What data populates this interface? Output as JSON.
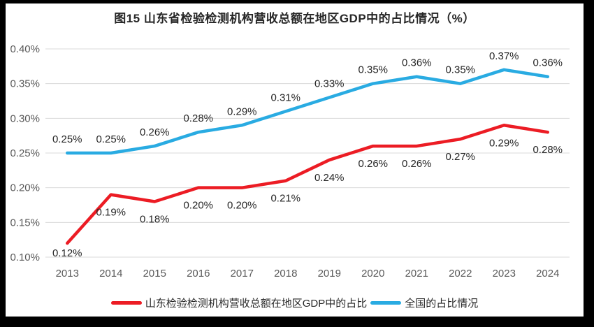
{
  "page": {
    "frame_color": "#000000",
    "canvas_color": "#ffffff"
  },
  "chart_data": {
    "type": "line",
    "title": "图15  山东省检验检测机构营收总额在地区GDP中的占比情况（%）",
    "categories": [
      "2013",
      "2014",
      "2015",
      "2016",
      "2017",
      "2018",
      "2019",
      "2020",
      "2021",
      "2022",
      "2023",
      "2024"
    ],
    "y_axis": {
      "min": 0.1,
      "max": 0.4,
      "tick_step": 0.05,
      "tick_labels": [
        "0.10%",
        "0.15%",
        "0.20%",
        "0.25%",
        "0.30%",
        "0.35%",
        "0.40%"
      ],
      "unit": "%"
    },
    "grid": true,
    "legend_position": "bottom",
    "series": [
      {
        "name": "山东检验检测机构营收总额在地区GDP中的占比",
        "color": "#ec1c24",
        "values": [
          0.12,
          0.19,
          0.18,
          0.2,
          0.2,
          0.21,
          0.24,
          0.26,
          0.26,
          0.27,
          0.29,
          0.28
        ],
        "data_labels": [
          "0.12%",
          "0.19%",
          "0.18%",
          "0.20%",
          "0.20%",
          "0.21%",
          "0.24%",
          "0.26%",
          "0.26%",
          "0.27%",
          "0.29%",
          "0.28%"
        ],
        "label_position": "below"
      },
      {
        "name": "全国的占比情况",
        "color": "#29abe2",
        "values": [
          0.25,
          0.25,
          0.26,
          0.28,
          0.29,
          0.31,
          0.33,
          0.35,
          0.36,
          0.35,
          0.37,
          0.36
        ],
        "data_labels": [
          "0.25%",
          "0.25%",
          "0.26%",
          "0.28%",
          "0.29%",
          "0.31%",
          "0.33%",
          "0.35%",
          "0.36%",
          "0.35%",
          "0.37%",
          "0.36%"
        ],
        "label_position": "above"
      }
    ],
    "colors": {
      "grid": "#d9d9d9",
      "axis_text": "#595959",
      "data_label_text": "#262626"
    }
  }
}
